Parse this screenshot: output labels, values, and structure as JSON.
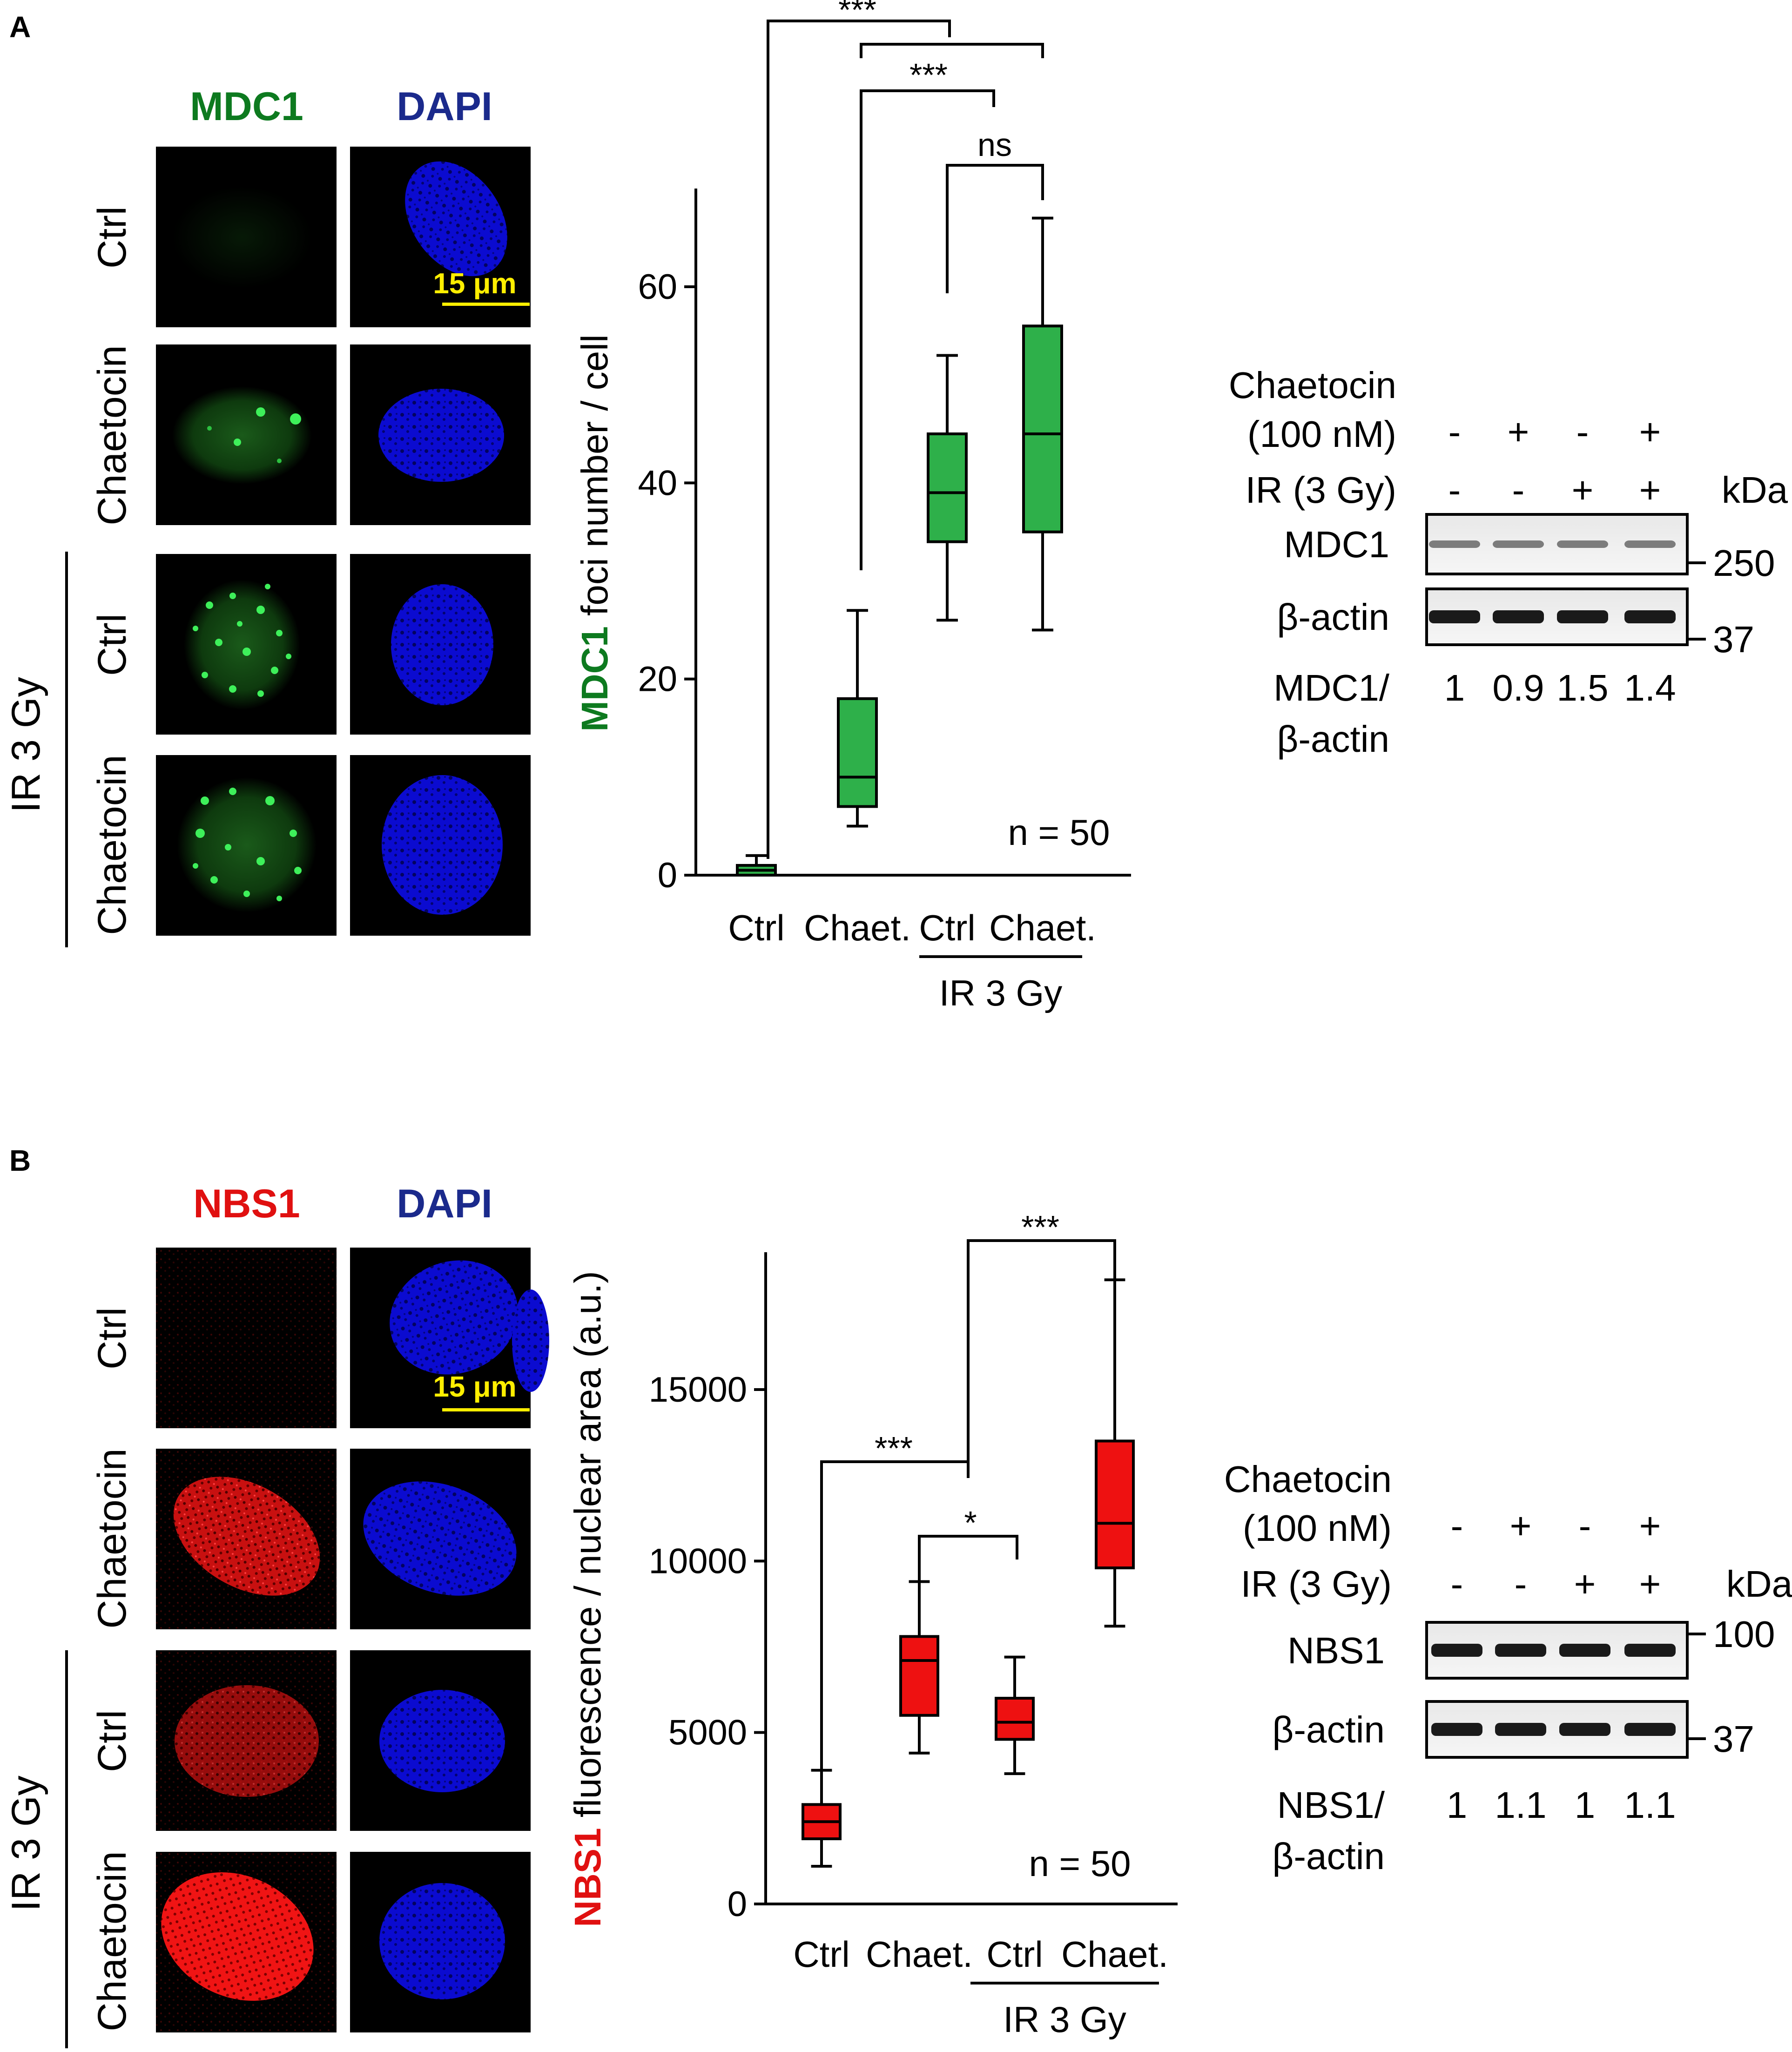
{
  "panel_a": {
    "letter": "A",
    "micro": {
      "channel1": "MDC1",
      "channel2": "DAPI",
      "scale": "15 μm",
      "rows": [
        "Ctrl",
        "Chaetocin",
        "Ctrl",
        "Chaetocin"
      ],
      "ir_label": "IR 3 Gy"
    },
    "plot": {
      "ylabel_marker": "MDC1",
      "ylabel_rest": " foci number / cell",
      "yticks": [
        "0",
        "20",
        "40",
        "60"
      ],
      "xlabels": [
        "Ctrl",
        "Chaet.",
        "Ctrl",
        "Chaet."
      ],
      "ir_label": "IR 3 Gy",
      "n_label": "n = 50",
      "sig": [
        "***",
        "***",
        "ns"
      ]
    },
    "blot": {
      "treat1_line1": "Chaetocin",
      "treat1_line2": "(100 nM)",
      "treat2": "IR (3 Gy)",
      "chaetocin_signs": [
        "-",
        "+",
        "-",
        "+"
      ],
      "ir_signs": [
        "-",
        "-",
        "+",
        "+"
      ],
      "kda": "kDa",
      "band1": "MDC1",
      "band2": "β-actin",
      "mw1": "250",
      "mw2": "37",
      "ratio_line1": "MDC1/",
      "ratio_line2": "β-actin",
      "ratios": [
        "1",
        "0.9",
        "1.5",
        "1.4"
      ]
    }
  },
  "panel_b": {
    "letter": "B",
    "micro": {
      "channel1": "NBS1",
      "channel2": "DAPI",
      "scale": "15 μm",
      "rows": [
        "Ctrl",
        "Chaetocin",
        "Ctrl",
        "Chaetocin"
      ],
      "ir_label": "IR 3 Gy"
    },
    "plot": {
      "ylabel_marker": "NBS1",
      "ylabel_rest": " fluorescence / nuclear area (a.u.)",
      "yticks": [
        "0",
        "5000",
        "10000",
        "15000"
      ],
      "xlabels": [
        "Ctrl",
        "Chaet.",
        "Ctrl",
        "Chaet."
      ],
      "ir_label": "IR 3 Gy",
      "n_label": "n = 50",
      "sig": [
        "***",
        "*",
        "***"
      ]
    },
    "blot": {
      "treat1_line1": "Chaetocin",
      "treat1_line2": "(100 nM)",
      "treat2": "IR (3 Gy)",
      "chaetocin_signs": [
        "-",
        "+",
        "-",
        "+"
      ],
      "ir_signs": [
        "-",
        "-",
        "+",
        "+"
      ],
      "kda": "kDa",
      "band1": "NBS1",
      "band2": "β-actin",
      "mw1": "100",
      "mw2": "37",
      "ratio_line1": "NBS1/",
      "ratio_line2": "β-actin",
      "ratios": [
        "1",
        "1.1",
        "1",
        "1.1"
      ]
    }
  },
  "colors": {
    "mdc1": "#0d7a1f",
    "dapi": "#1b2a8c",
    "nbs1": "#e01010",
    "box_green": "#2eb04a",
    "box_red": "#ee1111",
    "scale": "#ffee00"
  },
  "chart_data": [
    {
      "type": "box",
      "ylabel": "MDC1 foci number / cell",
      "categories": [
        "Ctrl",
        "Chaet.",
        "Ctrl",
        "Chaet."
      ],
      "group_label": "IR 3 Gy",
      "ylim": [
        0,
        70
      ],
      "series": [
        {
          "min": 0,
          "q1": 0,
          "median": 0.5,
          "q3": 1,
          "max": 2
        },
        {
          "min": 5,
          "q1": 7,
          "median": 10,
          "q3": 18,
          "max": 27
        },
        {
          "min": 26,
          "q1": 34,
          "median": 39,
          "q3": 45,
          "max": 53
        },
        {
          "min": 25,
          "q1": 35,
          "median": 45,
          "q3": 56,
          "max": 67
        }
      ]
    },
    {
      "type": "box",
      "ylabel": "NBS1 fluorescence / nuclear area (a.u.)",
      "categories": [
        "Ctrl",
        "Chaet.",
        "Ctrl",
        "Chaet."
      ],
      "group_label": "IR 3 Gy",
      "ylim": [
        0,
        19000
      ],
      "series": [
        {
          "min": 1100,
          "q1": 1900,
          "median": 2400,
          "q3": 2900,
          "max": 3900
        },
        {
          "min": 4400,
          "q1": 5500,
          "median": 7100,
          "q3": 7800,
          "max": 9400
        },
        {
          "min": 3800,
          "q1": 4800,
          "median": 5300,
          "q3": 6000,
          "max": 7200
        },
        {
          "min": 8100,
          "q1": 9800,
          "median": 11100,
          "q3": 13500,
          "max": 18200
        }
      ]
    }
  ]
}
